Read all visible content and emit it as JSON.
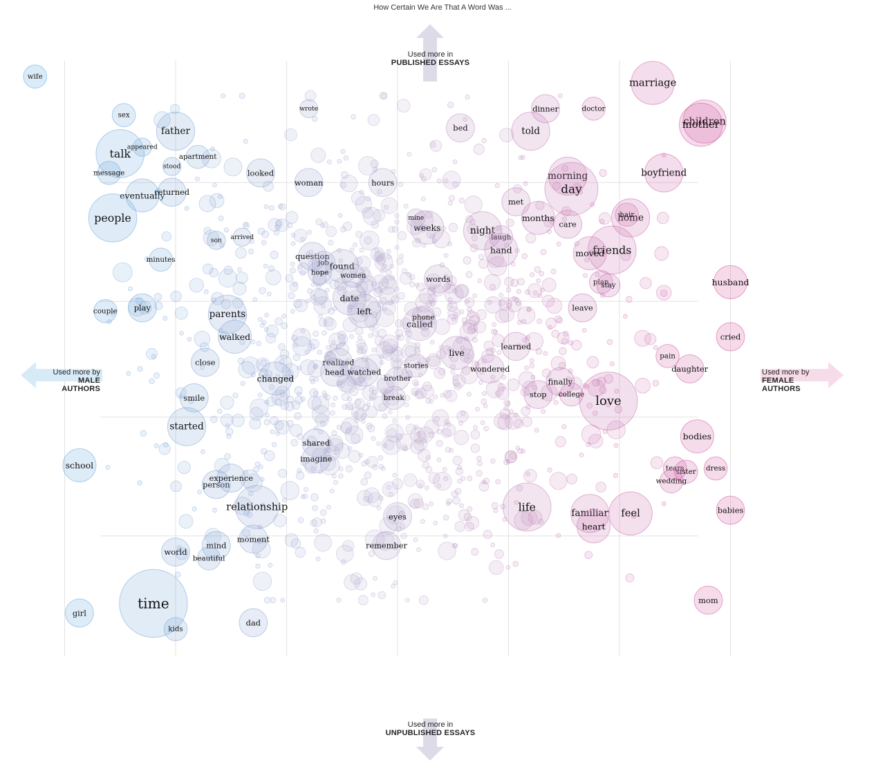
{
  "title": "How Certain We Are That A Word Was ...",
  "axes": {
    "top": {
      "line1": "Used more in",
      "line2": "PUBLISHED ESSAYS"
    },
    "bottom": {
      "line1": "Used more in",
      "line2": "UNPUBLISHED ESSAYS"
    },
    "left": {
      "line1": "Used more by",
      "line2": "MALE",
      "line3": "AUTHORS"
    },
    "right": {
      "line1": "Used more by",
      "line2": "FEMALE",
      "line3": "AUTHORS"
    }
  },
  "colors": {
    "male": "#5aa9e0",
    "female": "#d94d9c",
    "neutral": "#b7a8cc",
    "grid": "#e2e2e2",
    "arrow_top": "#dedbe9",
    "arrow_left": "#d7ebf7",
    "arrow_right": "#f6dbe8"
  },
  "chart_data": {
    "type": "scatter",
    "title": "How Certain We Are That A Word Was ...",
    "xlabel": "Used more by male authors ← → Used more by female authors",
    "ylabel": "Used more in unpublished essays ← → Used more in published essays",
    "xlim": [
      -1,
      1
    ],
    "ylim": [
      -1,
      1
    ],
    "labeled_words": [
      {
        "word": "wife",
        "x": -0.98,
        "y": 0.88,
        "size": 3
      },
      {
        "word": "sex",
        "x": -0.74,
        "y": 0.76,
        "size": 3
      },
      {
        "word": "father",
        "x": -0.6,
        "y": 0.71,
        "size": 6
      },
      {
        "word": "talk",
        "x": -0.75,
        "y": 0.64,
        "size": 8
      },
      {
        "word": "message",
        "x": -0.78,
        "y": 0.58,
        "size": 3
      },
      {
        "word": "apartment",
        "x": -0.54,
        "y": 0.63,
        "size": 3
      },
      {
        "word": "appeared",
        "x": -0.69,
        "y": 0.66,
        "size": 2
      },
      {
        "word": "stood",
        "x": -0.61,
        "y": 0.6,
        "size": 2
      },
      {
        "word": "eventually",
        "x": -0.69,
        "y": 0.51,
        "size": 5
      },
      {
        "word": "returned",
        "x": -0.61,
        "y": 0.52,
        "size": 4
      },
      {
        "word": "people",
        "x": -0.77,
        "y": 0.44,
        "size": 8
      },
      {
        "word": "looked",
        "x": -0.37,
        "y": 0.58,
        "size": 4
      },
      {
        "word": "woman",
        "x": -0.24,
        "y": 0.55,
        "size": 4
      },
      {
        "word": "wrote",
        "x": -0.24,
        "y": 0.78,
        "size": 2
      },
      {
        "word": "son",
        "x": -0.49,
        "y": 0.37,
        "size": 2
      },
      {
        "word": "arrived",
        "x": -0.42,
        "y": 0.38,
        "size": 2
      },
      {
        "word": "minutes",
        "x": -0.64,
        "y": 0.31,
        "size": 3
      },
      {
        "word": "question",
        "x": -0.23,
        "y": 0.32,
        "size": 4
      },
      {
        "word": "job",
        "x": -0.2,
        "y": 0.3,
        "size": 3
      },
      {
        "word": "found",
        "x": -0.15,
        "y": 0.29,
        "size": 5
      },
      {
        "word": "hope",
        "x": -0.21,
        "y": 0.27,
        "size": 3
      },
      {
        "word": "women",
        "x": -0.12,
        "y": 0.26,
        "size": 3
      },
      {
        "word": "date",
        "x": -0.13,
        "y": 0.19,
        "size": 5
      },
      {
        "word": "left",
        "x": -0.09,
        "y": 0.15,
        "size": 5
      },
      {
        "word": "play",
        "x": -0.69,
        "y": 0.16,
        "size": 4
      },
      {
        "word": "couple",
        "x": -0.79,
        "y": 0.15,
        "size": 3
      },
      {
        "word": "parents",
        "x": -0.46,
        "y": 0.14,
        "size": 6
      },
      {
        "word": "walked",
        "x": -0.44,
        "y": 0.07,
        "size": 5
      },
      {
        "word": "close",
        "x": -0.52,
        "y": -0.01,
        "size": 4
      },
      {
        "word": "changed",
        "x": -0.33,
        "y": -0.06,
        "size": 5
      },
      {
        "word": "realized",
        "x": -0.16,
        "y": -0.01,
        "size": 4
      },
      {
        "word": "head",
        "x": -0.17,
        "y": -0.04,
        "size": 4
      },
      {
        "word": "watched",
        "x": -0.09,
        "y": -0.04,
        "size": 4
      },
      {
        "word": "smile",
        "x": -0.55,
        "y": -0.12,
        "size": 4
      },
      {
        "word": "hours",
        "x": -0.04,
        "y": 0.55,
        "size": 4
      },
      {
        "word": "weeks",
        "x": 0.08,
        "y": 0.41,
        "size": 5
      },
      {
        "word": "mine",
        "x": 0.05,
        "y": 0.44,
        "size": 2
      },
      {
        "word": "words",
        "x": 0.11,
        "y": 0.25,
        "size": 4
      },
      {
        "word": "called",
        "x": 0.06,
        "y": 0.11,
        "size": 5
      },
      {
        "word": "phone",
        "x": 0.07,
        "y": 0.13,
        "size": 3
      },
      {
        "word": "live",
        "x": 0.16,
        "y": 0.02,
        "size": 5
      },
      {
        "word": "stories",
        "x": 0.05,
        "y": -0.02,
        "size": 3
      },
      {
        "word": "brother",
        "x": 0.0,
        "y": -0.06,
        "size": 3
      },
      {
        "word": "break",
        "x": -0.01,
        "y": -0.12,
        "size": 3
      },
      {
        "word": "bed",
        "x": 0.17,
        "y": 0.72,
        "size": 4
      },
      {
        "word": "told",
        "x": 0.36,
        "y": 0.71,
        "size": 6
      },
      {
        "word": "dinner",
        "x": 0.4,
        "y": 0.78,
        "size": 4
      },
      {
        "word": "doctor",
        "x": 0.53,
        "y": 0.78,
        "size": 3
      },
      {
        "word": "marriage",
        "x": 0.69,
        "y": 0.86,
        "size": 7
      },
      {
        "word": "children",
        "x": 0.83,
        "y": 0.74,
        "size": 7
      },
      {
        "word": "mother",
        "x": 0.82,
        "y": 0.73,
        "size": 7
      },
      {
        "word": "boyfriend",
        "x": 0.72,
        "y": 0.58,
        "size": 6
      },
      {
        "word": "morning",
        "x": 0.46,
        "y": 0.57,
        "size": 6
      },
      {
        "word": "day",
        "x": 0.47,
        "y": 0.53,
        "size": 9
      },
      {
        "word": "met",
        "x": 0.32,
        "y": 0.49,
        "size": 4
      },
      {
        "word": "months",
        "x": 0.38,
        "y": 0.44,
        "size": 5
      },
      {
        "word": "home",
        "x": 0.63,
        "y": 0.44,
        "size": 6
      },
      {
        "word": "hair",
        "x": 0.62,
        "y": 0.45,
        "size": 3
      },
      {
        "word": "care",
        "x": 0.46,
        "y": 0.42,
        "size": 4
      },
      {
        "word": "night",
        "x": 0.23,
        "y": 0.4,
        "size": 6
      },
      {
        "word": "laugh",
        "x": 0.28,
        "y": 0.38,
        "size": 3
      },
      {
        "word": "hand",
        "x": 0.28,
        "y": 0.34,
        "size": 5
      },
      {
        "word": "friends",
        "x": 0.58,
        "y": 0.34,
        "size": 8
      },
      {
        "word": "moved",
        "x": 0.52,
        "y": 0.33,
        "size": 5
      },
      {
        "word": "plan",
        "x": 0.55,
        "y": 0.24,
        "size": 3
      },
      {
        "word": "stay",
        "x": 0.57,
        "y": 0.23,
        "size": 3
      },
      {
        "word": "husband",
        "x": 0.9,
        "y": 0.24,
        "size": 5
      },
      {
        "word": "leave",
        "x": 0.5,
        "y": 0.16,
        "size": 4
      },
      {
        "word": "learned",
        "x": 0.32,
        "y": 0.04,
        "size": 4
      },
      {
        "word": "wondered",
        "x": 0.25,
        "y": -0.03,
        "size": 4
      },
      {
        "word": "finally",
        "x": 0.44,
        "y": -0.07,
        "size": 4
      },
      {
        "word": "stop",
        "x": 0.38,
        "y": -0.11,
        "size": 4
      },
      {
        "word": "college",
        "x": 0.47,
        "y": -0.11,
        "size": 3
      },
      {
        "word": "love",
        "x": 0.57,
        "y": -0.13,
        "size": 10
      },
      {
        "word": "cried",
        "x": 0.9,
        "y": 0.07,
        "size": 4
      },
      {
        "word": "pain",
        "x": 0.73,
        "y": 0.01,
        "size": 3
      },
      {
        "word": "daughter",
        "x": 0.79,
        "y": -0.03,
        "size": 4
      },
      {
        "word": "bodies",
        "x": 0.81,
        "y": -0.24,
        "size": 5
      },
      {
        "word": "dress",
        "x": 0.86,
        "y": -0.34,
        "size": 3
      },
      {
        "word": "tears",
        "x": 0.75,
        "y": -0.34,
        "size": 3
      },
      {
        "word": "sister",
        "x": 0.78,
        "y": -0.35,
        "size": 3
      },
      {
        "word": "wedding",
        "x": 0.74,
        "y": -0.38,
        "size": 3
      },
      {
        "word": "babies",
        "x": 0.9,
        "y": -0.47,
        "size": 4
      },
      {
        "word": "life",
        "x": 0.35,
        "y": -0.46,
        "size": 8
      },
      {
        "word": "familiar",
        "x": 0.52,
        "y": -0.48,
        "size": 6
      },
      {
        "word": "feel",
        "x": 0.63,
        "y": -0.48,
        "size": 7
      },
      {
        "word": "heart",
        "x": 0.53,
        "y": -0.52,
        "size": 5
      },
      {
        "word": "mom",
        "x": 0.84,
        "y": -0.75,
        "size": 4
      },
      {
        "word": "school",
        "x": -0.86,
        "y": -0.33,
        "size": 5
      },
      {
        "word": "started",
        "x": -0.57,
        "y": -0.21,
        "size": 6
      },
      {
        "word": "person",
        "x": -0.49,
        "y": -0.39,
        "size": 4
      },
      {
        "word": "experience",
        "x": -0.45,
        "y": -0.37,
        "size": 4
      },
      {
        "word": "relationship",
        "x": -0.38,
        "y": -0.46,
        "size": 7
      },
      {
        "word": "moment",
        "x": -0.39,
        "y": -0.56,
        "size": 4
      },
      {
        "word": "mind",
        "x": -0.49,
        "y": -0.58,
        "size": 4
      },
      {
        "word": "world",
        "x": -0.6,
        "y": -0.6,
        "size": 4
      },
      {
        "word": "beautiful",
        "x": -0.51,
        "y": -0.62,
        "size": 3
      },
      {
        "word": "time",
        "x": -0.66,
        "y": -0.76,
        "size": 12
      },
      {
        "word": "girl",
        "x": -0.86,
        "y": -0.79,
        "size": 4
      },
      {
        "word": "kids",
        "x": -0.6,
        "y": -0.84,
        "size": 3
      },
      {
        "word": "dad",
        "x": -0.39,
        "y": -0.82,
        "size": 4
      },
      {
        "word": "remember",
        "x": -0.03,
        "y": -0.58,
        "size": 4
      },
      {
        "word": "imagine",
        "x": -0.22,
        "y": -0.31,
        "size": 4
      },
      {
        "word": "shared",
        "x": -0.22,
        "y": -0.26,
        "size": 4
      },
      {
        "word": "eyes",
        "x": 0.0,
        "y": -0.49,
        "size": 4
      }
    ]
  }
}
